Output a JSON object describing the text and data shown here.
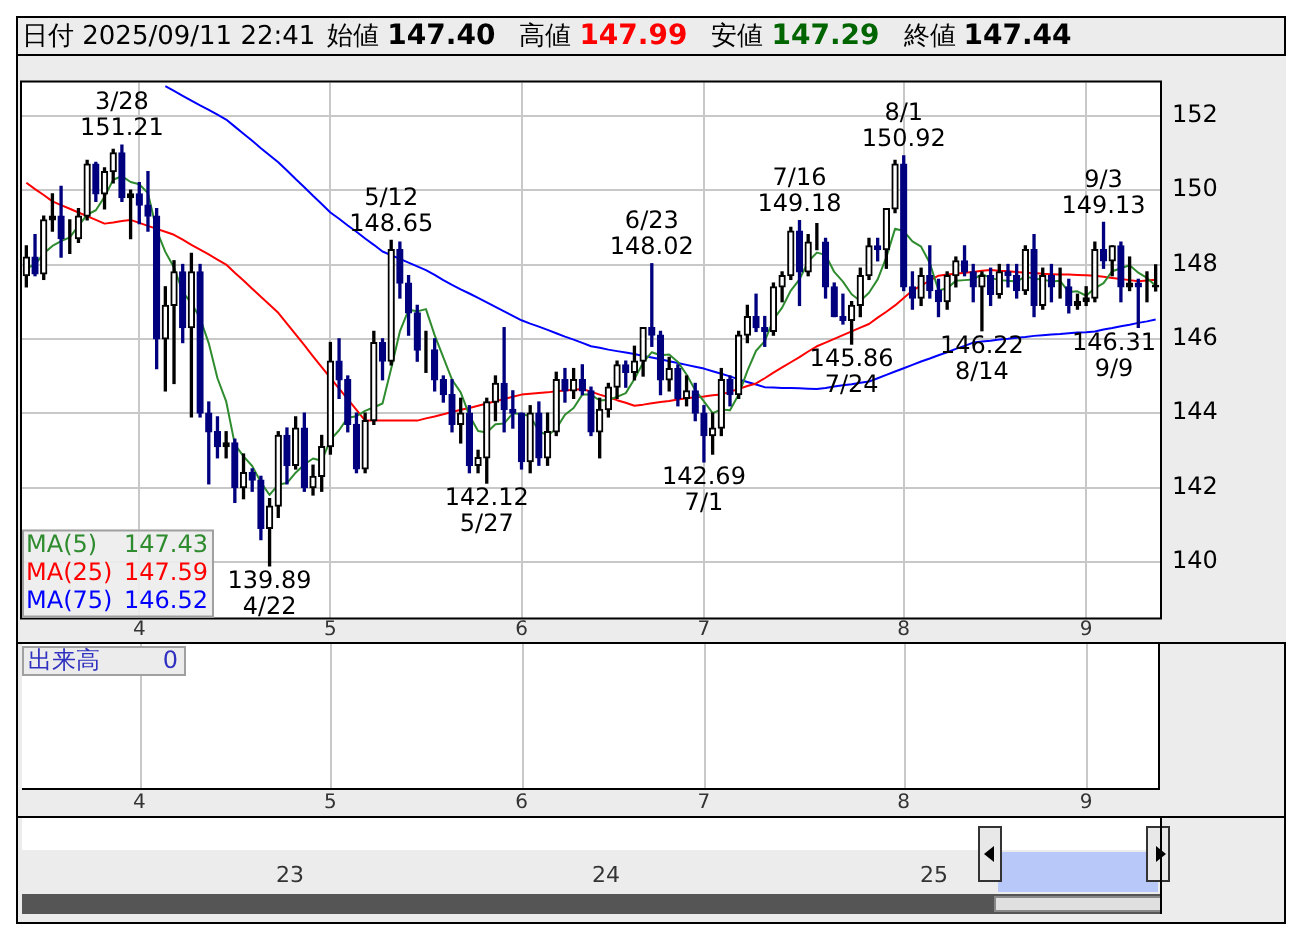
{
  "chart_data": {
    "type": "candlestick",
    "title": "日付 2025/09/11 22:41",
    "categories": [
      null,
      null,
      null,
      null,
      null,
      null,
      null,
      null,
      null,
      null,
      null,
      null,
      null,
      "4",
      null,
      null,
      null,
      null,
      null,
      null,
      null,
      null,
      null,
      null,
      null,
      null,
      null,
      null,
      null,
      null,
      null,
      null,
      null,
      null,
      null,
      "5",
      null,
      null,
      null,
      null,
      null,
      null,
      null,
      null,
      null,
      null,
      null,
      null,
      null,
      null,
      null,
      null,
      null,
      null,
      null,
      null,
      null,
      "6",
      null,
      null,
      null,
      null,
      null,
      null,
      null,
      null,
      null,
      null,
      null,
      null,
      null,
      null,
      null,
      null,
      null,
      null,
      null,
      null,
      "7",
      null,
      null,
      null,
      null,
      null,
      null,
      null,
      null,
      null,
      null,
      null,
      null,
      null,
      null,
      null,
      null,
      null,
      null,
      null,
      null,
      null,
      null,
      "8",
      null,
      null,
      null,
      null,
      null,
      null,
      null,
      null,
      null,
      null,
      null,
      null,
      null,
      null,
      null,
      null,
      null,
      null,
      null,
      null,
      "9",
      null,
      null,
      null,
      null,
      null,
      null,
      null,
      null
    ],
    "ohlc": [
      [
        147.7,
        148.5,
        147.4,
        148.2
      ],
      [
        148.2,
        148.8,
        147.7,
        147.75
      ],
      [
        147.75,
        149.3,
        147.6,
        149.2
      ],
      [
        149.2,
        149.9,
        148.9,
        149.3
      ],
      [
        149.3,
        150.1,
        148.2,
        148.7
      ],
      [
        148.7,
        149.2,
        148.3,
        148.7
      ],
      [
        148.7,
        149.5,
        148.6,
        149.3
      ],
      [
        149.3,
        150.8,
        149.2,
        150.7
      ],
      [
        150.7,
        150.75,
        149.7,
        149.9
      ],
      [
        149.9,
        150.6,
        149.5,
        150.5
      ],
      [
        150.5,
        151.1,
        150.2,
        151.0
      ],
      [
        151.0,
        151.21,
        149.7,
        149.8
      ],
      [
        149.8,
        150.0,
        148.7,
        149.9
      ],
      [
        149.9,
        150.2,
        149.1,
        149.6
      ],
      [
        149.6,
        150.5,
        148.9,
        149.3
      ],
      [
        149.3,
        149.5,
        145.2,
        146.0
      ],
      [
        146.0,
        147.4,
        144.6,
        146.9
      ],
      [
        146.9,
        148.1,
        144.8,
        147.8
      ],
      [
        147.8,
        148.0,
        145.9,
        146.3
      ],
      [
        146.3,
        148.3,
        143.9,
        147.8
      ],
      [
        147.8,
        148.0,
        143.9,
        144.0
      ],
      [
        144.0,
        144.3,
        142.1,
        143.5
      ],
      [
        143.5,
        143.9,
        142.8,
        143.1
      ],
      [
        143.1,
        143.5,
        142.8,
        143.2
      ],
      [
        143.2,
        143.3,
        141.6,
        142.0
      ],
      [
        142.0,
        142.9,
        141.7,
        142.4
      ],
      [
        142.4,
        142.5,
        141.9,
        142.2
      ],
      [
        142.2,
        142.3,
        140.6,
        140.9
      ],
      [
        140.9,
        141.7,
        139.89,
        141.5
      ],
      [
        141.5,
        143.5,
        141.2,
        143.4
      ],
      [
        143.4,
        143.6,
        142.1,
        142.6
      ],
      [
        142.6,
        143.9,
        142.5,
        143.6
      ],
      [
        143.6,
        144.0,
        141.9,
        142.0
      ],
      [
        142.0,
        142.6,
        141.8,
        142.3
      ],
      [
        142.3,
        143.4,
        141.9,
        143.1
      ],
      [
        143.1,
        145.9,
        142.9,
        145.4
      ],
      [
        145.4,
        146.0,
        144.4,
        144.9
      ],
      [
        144.9,
        145.0,
        143.5,
        143.7
      ],
      [
        143.7,
        144.0,
        142.4,
        142.5
      ],
      [
        142.5,
        144.0,
        142.4,
        143.8
      ],
      [
        143.8,
        146.2,
        143.7,
        145.9
      ],
      [
        145.9,
        146.0,
        144.9,
        145.4
      ],
      [
        145.4,
        148.65,
        145.3,
        148.4
      ],
      [
        148.4,
        148.6,
        147.1,
        147.5
      ],
      [
        147.5,
        147.7,
        146.1,
        146.7
      ],
      [
        146.7,
        146.9,
        145.4,
        145.7
      ],
      [
        145.7,
        146.2,
        145.1,
        145.7
      ],
      [
        145.7,
        146.0,
        144.6,
        144.9
      ],
      [
        144.9,
        145.0,
        144.3,
        144.5
      ],
      [
        144.5,
        144.9,
        143.5,
        143.7
      ],
      [
        143.7,
        144.4,
        143.2,
        144.0
      ],
      [
        144.0,
        144.2,
        142.4,
        142.6
      ],
      [
        142.6,
        143.0,
        142.4,
        142.8
      ],
      [
        142.8,
        144.4,
        142.12,
        144.3
      ],
      [
        144.3,
        145.0,
        143.8,
        144.8
      ],
      [
        144.8,
        146.3,
        143.5,
        144.1
      ],
      [
        144.1,
        144.6,
        143.6,
        144.0
      ],
      [
        144.0,
        144.0,
        142.5,
        142.7
      ],
      [
        142.7,
        144.2,
        142.4,
        144.0
      ],
      [
        144.0,
        144.3,
        142.6,
        142.8
      ],
      [
        142.8,
        144.0,
        142.6,
        143.5
      ],
      [
        143.5,
        145.1,
        143.4,
        144.9
      ],
      [
        144.9,
        145.2,
        144.3,
        144.6
      ],
      [
        144.6,
        145.2,
        144.4,
        144.9
      ],
      [
        144.9,
        145.3,
        144.5,
        144.6
      ],
      [
        144.6,
        144.7,
        143.4,
        143.5
      ],
      [
        143.5,
        144.4,
        142.8,
        144.1
      ],
      [
        144.1,
        144.8,
        143.9,
        144.7
      ],
      [
        144.7,
        145.4,
        144.4,
        145.3
      ],
      [
        145.3,
        145.4,
        144.7,
        145.1
      ],
      [
        145.1,
        145.8,
        144.9,
        145.4
      ],
      [
        145.4,
        146.3,
        145.0,
        146.3
      ],
      [
        146.3,
        148.02,
        145.8,
        146.1
      ],
      [
        146.1,
        146.2,
        144.5,
        144.9
      ],
      [
        144.9,
        145.5,
        144.6,
        145.2
      ],
      [
        145.2,
        145.3,
        144.2,
        144.4
      ],
      [
        144.4,
        145.0,
        144.2,
        144.6
      ],
      [
        144.6,
        144.8,
        143.8,
        144.0
      ],
      [
        144.0,
        144.2,
        142.69,
        143.4
      ],
      [
        143.4,
        144.0,
        142.9,
        143.6
      ],
      [
        143.6,
        145.2,
        143.4,
        144.9
      ],
      [
        144.9,
        145.0,
        144.2,
        144.5
      ],
      [
        144.5,
        146.2,
        144.4,
        146.1
      ],
      [
        146.1,
        146.9,
        145.9,
        146.6
      ],
      [
        146.6,
        147.2,
        146.2,
        146.3
      ],
      [
        146.3,
        146.6,
        145.8,
        146.2
      ],
      [
        146.2,
        147.5,
        146.1,
        147.4
      ],
      [
        147.4,
        147.8,
        147.0,
        147.7
      ],
      [
        147.7,
        149.0,
        147.6,
        148.9
      ],
      [
        148.9,
        149.18,
        146.9,
        147.8
      ],
      [
        147.8,
        148.8,
        147.7,
        148.6
      ],
      [
        148.6,
        149.1,
        148.4,
        148.6
      ],
      [
        148.6,
        148.7,
        147.1,
        147.4
      ],
      [
        147.4,
        147.5,
        146.6,
        146.6
      ],
      [
        146.6,
        147.2,
        146.4,
        146.5
      ],
      [
        146.5,
        147.0,
        145.86,
        146.9
      ],
      [
        146.9,
        147.9,
        146.6,
        147.7
      ],
      [
        147.7,
        148.7,
        147.6,
        148.5
      ],
      [
        148.5,
        148.7,
        148.1,
        148.4
      ],
      [
        148.4,
        149.5,
        147.9,
        149.5
      ],
      [
        149.5,
        150.8,
        149.4,
        150.7
      ],
      [
        150.7,
        150.92,
        147.3,
        147.4
      ],
      [
        147.4,
        147.8,
        146.8,
        147.1
      ],
      [
        147.1,
        147.9,
        146.9,
        147.7
      ],
      [
        147.7,
        148.5,
        147.1,
        147.3
      ],
      [
        147.3,
        147.6,
        146.6,
        147.0
      ],
      [
        147.0,
        147.8,
        146.8,
        147.7
      ],
      [
        147.7,
        148.2,
        147.4,
        148.1
      ],
      [
        148.1,
        148.5,
        147.7,
        147.8
      ],
      [
        147.8,
        148.0,
        147.0,
        147.4
      ],
      [
        147.4,
        147.8,
        146.22,
        147.7
      ],
      [
        147.7,
        147.9,
        146.9,
        147.2
      ],
      [
        147.2,
        148.0,
        147.1,
        147.8
      ],
      [
        147.8,
        148.0,
        147.4,
        147.7
      ],
      [
        147.7,
        148.0,
        147.1,
        147.3
      ],
      [
        147.3,
        148.5,
        147.2,
        148.4
      ],
      [
        148.4,
        148.8,
        146.6,
        146.9
      ],
      [
        146.9,
        147.9,
        146.8,
        147.7
      ],
      [
        147.7,
        148.0,
        147.0,
        147.4
      ],
      [
        147.4,
        147.9,
        147.1,
        147.4
      ],
      [
        147.4,
        147.6,
        146.7,
        146.9
      ],
      [
        146.9,
        147.2,
        146.8,
        147.0
      ],
      [
        147.0,
        147.4,
        146.9,
        147.1
      ],
      [
        147.1,
        148.6,
        147.0,
        148.4
      ],
      [
        148.4,
        149.13,
        147.9,
        148.1
      ],
      [
        148.1,
        148.5,
        147.7,
        148.5
      ],
      [
        148.5,
        148.6,
        147.0,
        147.4
      ],
      [
        147.4,
        148.2,
        147.3,
        147.5
      ],
      [
        147.5,
        147.6,
        146.31,
        147.4
      ],
      [
        147.4,
        147.8,
        147.0,
        147.4
      ],
      [
        147.4,
        147.99,
        147.29,
        147.44
      ]
    ],
    "series": [
      {
        "name": "MA(5)",
        "type": "line",
        "color": "#2e8b2e",
        "values": [
          147.9,
          148.0,
          148.3,
          148.5,
          148.63,
          148.73,
          149.04,
          149.34,
          149.46,
          149.82,
          150.28,
          150.38,
          150.22,
          150.16,
          149.92,
          148.92,
          148.34,
          147.92,
          147.26,
          146.96,
          146.56,
          145.88,
          144.94,
          144.32,
          143.16,
          142.84,
          142.58,
          142.14,
          141.8,
          142.08,
          142.12,
          142.4,
          142.62,
          142.78,
          142.72,
          143.28,
          143.54,
          143.88,
          143.92,
          144.06,
          144.16,
          144.26,
          145.2,
          146.2,
          146.78,
          146.74,
          146.8,
          146.1,
          145.5,
          144.9,
          144.56,
          143.94,
          143.52,
          143.48,
          143.7,
          143.72,
          144.0,
          143.98,
          143.92,
          143.52,
          143.4,
          143.58,
          143.96,
          144.14,
          144.5,
          144.5,
          144.34,
          144.36,
          144.44,
          144.54,
          144.92,
          145.36,
          145.64,
          145.56,
          145.58,
          145.38,
          145.04,
          144.62,
          144.32,
          144.0,
          144.1,
          144.08,
          144.5,
          145.14,
          145.68,
          145.94,
          146.52,
          146.84,
          147.3,
          147.6,
          148.08,
          148.32,
          148.26,
          147.8,
          147.54,
          147.2,
          147.02,
          147.24,
          147.6,
          148.2,
          148.96,
          148.9,
          148.62,
          148.48,
          148.04,
          147.3,
          147.36,
          147.56,
          147.58,
          147.6,
          147.74,
          147.64,
          147.58,
          147.56,
          147.54,
          147.68,
          147.62,
          147.6,
          147.54,
          147.56,
          147.26,
          147.28,
          147.16,
          147.36,
          147.5,
          147.82,
          147.9,
          147.98,
          147.78,
          147.64,
          147.43
        ]
      },
      {
        "name": "MA(25)",
        "type": "line",
        "color": "#ff0000",
        "values": [
          150.2,
          150.03,
          149.87,
          149.7,
          149.6,
          149.5,
          149.4,
          149.3,
          149.2,
          149.1,
          149.13,
          149.17,
          149.2,
          149.12,
          149.04,
          148.96,
          148.88,
          148.8,
          148.67,
          148.53,
          148.4,
          148.27,
          148.13,
          148.0,
          147.78,
          147.57,
          147.35,
          147.13,
          146.92,
          146.7,
          146.41,
          146.12,
          145.83,
          145.53,
          145.24,
          144.95,
          144.66,
          144.38,
          144.09,
          143.8,
          143.8,
          143.8,
          143.8,
          143.8,
          143.8,
          143.8,
          143.86,
          143.91,
          143.97,
          144.03,
          144.09,
          144.14,
          144.2,
          144.26,
          144.32,
          144.38,
          144.44,
          144.5,
          144.52,
          144.54,
          144.56,
          144.59,
          144.61,
          144.63,
          144.65,
          144.58,
          144.5,
          144.43,
          144.35,
          144.28,
          144.2,
          144.23,
          144.27,
          144.3,
          144.33,
          144.37,
          144.4,
          144.43,
          144.45,
          144.48,
          144.5,
          144.58,
          144.65,
          144.73,
          144.8,
          144.94,
          145.09,
          145.23,
          145.37,
          145.51,
          145.66,
          145.8,
          145.9,
          146.0,
          146.1,
          146.2,
          146.3,
          146.4,
          146.57,
          146.73,
          146.9,
          147.1,
          147.3,
          147.43,
          147.57,
          147.7,
          147.73,
          147.75,
          147.78,
          147.8,
          147.83,
          147.85,
          147.83,
          147.82,
          147.8,
          147.78,
          147.77,
          147.75,
          147.74,
          147.73,
          147.73,
          147.72,
          147.71,
          147.7,
          147.67,
          147.64,
          147.61,
          147.58,
          147.55,
          147.57,
          147.59
        ]
      },
      {
        "name": "MA(75)",
        "type": "line",
        "color": "#0000ff",
        "values": [
          null,
          null,
          null,
          null,
          null,
          null,
          null,
          null,
          null,
          null,
          null,
          null,
          null,
          null,
          null,
          null,
          152.8,
          152.67,
          152.54,
          152.41,
          152.28,
          152.16,
          152.03,
          151.9,
          151.71,
          151.52,
          151.33,
          151.13,
          150.94,
          150.75,
          150.53,
          150.3,
          150.08,
          149.85,
          149.63,
          149.4,
          149.23,
          149.05,
          148.88,
          148.7,
          148.53,
          148.35,
          148.25,
          148.15,
          148.05,
          147.95,
          147.85,
          147.72,
          147.58,
          147.45,
          147.33,
          147.22,
          147.1,
          146.98,
          146.86,
          146.74,
          146.62,
          146.5,
          146.41,
          146.33,
          146.24,
          146.15,
          146.06,
          145.98,
          145.89,
          145.8,
          145.76,
          145.71,
          145.67,
          145.63,
          145.59,
          145.54,
          145.5,
          145.45,
          145.4,
          145.35,
          145.3,
          145.25,
          145.2,
          145.13,
          145.06,
          144.99,
          144.91,
          144.84,
          144.77,
          144.7,
          144.69,
          144.68,
          144.68,
          144.67,
          144.66,
          144.65,
          144.68,
          144.72,
          144.75,
          144.78,
          144.82,
          144.85,
          144.94,
          145.03,
          145.12,
          145.21,
          145.3,
          145.39,
          145.47,
          145.56,
          145.64,
          145.73,
          145.81,
          145.9,
          145.93,
          145.95,
          145.98,
          146.0,
          146.03,
          146.05,
          146.08,
          146.1,
          146.12,
          146.13,
          146.15,
          146.17,
          146.18,
          146.2,
          146.25,
          146.29,
          146.34,
          146.38,
          146.43,
          146.47,
          146.52
        ]
      }
    ],
    "ylim": [
      138.5,
      152.9
    ],
    "yticks": [
      140,
      142,
      144,
      146,
      148,
      150,
      152
    ],
    "grid": true,
    "legend": "bottom left",
    "marker": "none",
    "annotations": [
      "始値 147.40",
      "高値 147.99",
      "安値 147.29",
      "終値 147.44",
      "147.43",
      "147.59",
      "146.52",
      "出来高 0",
      "23",
      "24",
      "25",
      {
        "text": "3/28\n151.21",
        "y": 151.21
      },
      {
        "text": "139.89\n4/22",
        "y": 139.89
      },
      {
        "text": "5/12\n148.65",
        "y": 148.65
      },
      {
        "text": "142.12\n5/27",
        "y": 142.12
      },
      {
        "text": "6/23\n148.02",
        "y": 148.02
      },
      {
        "text": "142.69\n7/1",
        "y": 142.69
      },
      {
        "text": "7/16\n149.18",
        "y": 149.18
      },
      {
        "text": "145.86\n7/24",
        "y": 145.86
      },
      {
        "text": "8/1\n150.92",
        "y": 150.92
      },
      {
        "text": "146.22\n8/14",
        "y": 146.22
      },
      {
        "text": "9/3\n149.13",
        "y": 149.13
      },
      {
        "text": "146.31\n9/9",
        "y": 146.31
      }
    ]
  }
}
